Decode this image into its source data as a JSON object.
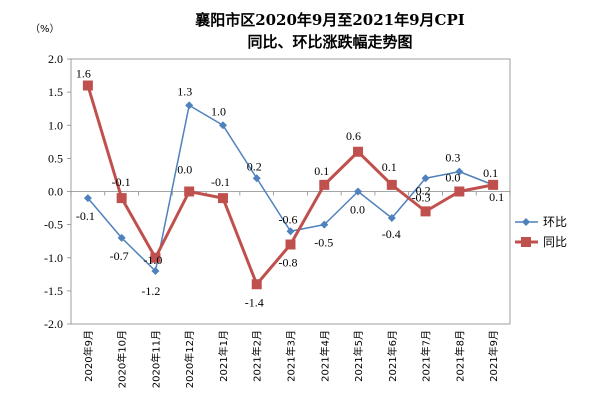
{
  "chart_data": {
    "type": "line",
    "title_lines": [
      "襄阳市区2020年9月至2021年9月CPI",
      "同比、环比涨跌幅走势图"
    ],
    "unit": "（%）",
    "categories": [
      "2020年9月",
      "2020年10月",
      "2020年11月",
      "2020年12月",
      "2021年1月",
      "2021年2月",
      "2021年3月",
      "2021年4月",
      "2021年5月",
      "2021年6月",
      "2021年7月",
      "2021年8月",
      "2021年9月"
    ],
    "ylim": [
      -2.0,
      2.0
    ],
    "yticks": [
      "2.0",
      "1.5",
      "1.0",
      "0.5",
      "0.0",
      "-0.5",
      "-1.0",
      "-1.5",
      "-2.0"
    ],
    "ytick_values": [
      2.0,
      1.5,
      1.0,
      0.5,
      0.0,
      -0.5,
      -1.0,
      -1.5,
      -2.0
    ],
    "series": [
      {
        "name": "环比",
        "color": "#4F81BD",
        "marker": "diamond",
        "values": [
          -0.1,
          -0.7,
          -1.2,
          1.3,
          1.0,
          0.2,
          -0.6,
          -0.5,
          0.0,
          -0.4,
          0.2,
          0.3,
          0.1
        ],
        "labels": [
          "-0.1",
          "-0.7",
          "-1.2",
          "1.3",
          "1.0",
          "0.2",
          "-0.6",
          "-0.5",
          "0.0",
          "-0.4",
          "0.2",
          "0.3",
          "0.1"
        ]
      },
      {
        "name": "同比",
        "color": "#C0504D",
        "marker": "square",
        "values": [
          1.6,
          -0.1,
          -1.0,
          0.0,
          -0.1,
          -1.4,
          -0.8,
          0.1,
          0.6,
          0.1,
          -0.3,
          0.0,
          0.1
        ],
        "labels": [
          "1.6",
          "-0.1",
          "-1.0",
          "0.0",
          "-0.1",
          "-1.4",
          "-0.8",
          "0.1",
          "0.6",
          "0.1",
          "-0.3",
          "0.0",
          "0.1"
        ]
      }
    ],
    "grid": false,
    "legend": "right"
  }
}
